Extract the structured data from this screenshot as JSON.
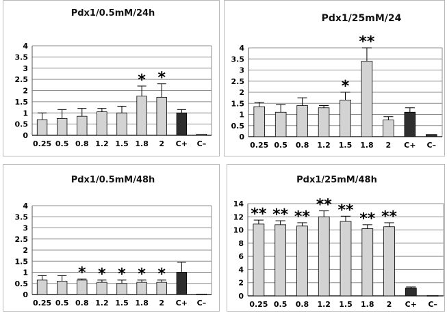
{
  "chart_data": [
    {
      "type": "bar",
      "title": "Pdx1/0.5mM/24h",
      "categories": [
        "0.25",
        "0.5",
        "0.8",
        "1.2",
        "1.5",
        "1.8",
        "2",
        "C+",
        "C–"
      ],
      "values": [
        0.7,
        0.75,
        0.85,
        1.05,
        1.0,
        1.75,
        1.7,
        1.0,
        0.05
      ],
      "error": [
        0.3,
        0.4,
        0.35,
        0.15,
        0.3,
        0.45,
        0.6,
        0.15,
        0.0
      ],
      "significance": [
        "",
        "",
        "",
        "",
        "",
        "*",
        "*",
        "",
        ""
      ],
      "ylim": [
        0,
        4
      ],
      "yticks": [
        "0",
        "0.5",
        "1",
        "1.5",
        "2",
        "2.5",
        "3",
        "3.5",
        "4"
      ],
      "grid": true,
      "bar_colors": [
        "#d3d3d3",
        "#d3d3d3",
        "#d3d3d3",
        "#d3d3d3",
        "#d3d3d3",
        "#d3d3d3",
        "#d3d3d3",
        "#2e2e2e",
        "#d3d3d3"
      ]
    },
    {
      "type": "bar",
      "title": "Pdx1/25mM/24",
      "categories": [
        "0.25",
        "0.5",
        "0.8",
        "1.2",
        "1.5",
        "1.8",
        "2",
        "C+",
        "C–"
      ],
      "values": [
        1.35,
        1.1,
        1.4,
        1.3,
        1.65,
        3.4,
        0.75,
        1.1,
        0.1
      ],
      "error": [
        0.2,
        0.35,
        0.35,
        0.1,
        0.35,
        0.6,
        0.15,
        0.2,
        0.0
      ],
      "significance": [
        "",
        "",
        "",
        "",
        "*",
        "**",
        "",
        "",
        ""
      ],
      "ylim": [
        0,
        4
      ],
      "yticks": [
        "0",
        "0.5",
        "1",
        "1.5",
        "2",
        "2.5",
        "3",
        "3.5",
        "4"
      ],
      "grid": true,
      "bar_colors": [
        "#d3d3d3",
        "#d3d3d3",
        "#d3d3d3",
        "#d3d3d3",
        "#d3d3d3",
        "#d3d3d3",
        "#d3d3d3",
        "#2e2e2e",
        "#2e2e2e"
      ]
    },
    {
      "type": "bar",
      "title": "Pdx1/0.5mM/48h",
      "categories": [
        "0.25",
        "0.5",
        "0.8",
        "1.2",
        "1.5",
        "1.8",
        "2",
        "C+",
        "C–"
      ],
      "values": [
        0.65,
        0.6,
        0.65,
        0.55,
        0.5,
        0.55,
        0.55,
        1.0,
        0.02
      ],
      "error": [
        0.2,
        0.25,
        0.05,
        0.1,
        0.15,
        0.1,
        0.1,
        0.45,
        0.0
      ],
      "significance": [
        "",
        "",
        "*",
        "*",
        "*",
        "*",
        "*",
        "",
        ""
      ],
      "ylim": [
        0,
        4
      ],
      "yticks": [
        "0",
        "0.5",
        "1",
        "1.5",
        "2",
        "2.5",
        "3",
        "3.5",
        "4"
      ],
      "grid": true,
      "bar_colors": [
        "#d3d3d3",
        "#d3d3d3",
        "#d3d3d3",
        "#d3d3d3",
        "#d3d3d3",
        "#d3d3d3",
        "#d3d3d3",
        "#2e2e2e",
        "#d3d3d3"
      ]
    },
    {
      "type": "bar",
      "title": "Pdx1/25mM/48h",
      "categories": [
        "0.25",
        "0.5",
        "0.8",
        "1.2",
        "1.5",
        "1.8",
        "2",
        "C+",
        "C–"
      ],
      "values": [
        10.9,
        10.8,
        10.6,
        12.0,
        11.3,
        10.2,
        10.5,
        1.2,
        0.05
      ],
      "error": [
        0.6,
        0.6,
        0.5,
        0.9,
        0.8,
        0.6,
        0.6,
        0.15,
        0.0
      ],
      "significance": [
        "**",
        "**",
        "**",
        "**",
        "**",
        "**",
        "**",
        "",
        ""
      ],
      "ylim": [
        0,
        14
      ],
      "yticks": [
        "0",
        "2",
        "4",
        "6",
        "8",
        "10",
        "12",
        "14"
      ],
      "grid": true,
      "bar_colors": [
        "#d3d3d3",
        "#d3d3d3",
        "#d3d3d3",
        "#d3d3d3",
        "#d3d3d3",
        "#d3d3d3",
        "#d3d3d3",
        "#2e2e2e",
        "#d3d3d3"
      ]
    }
  ]
}
